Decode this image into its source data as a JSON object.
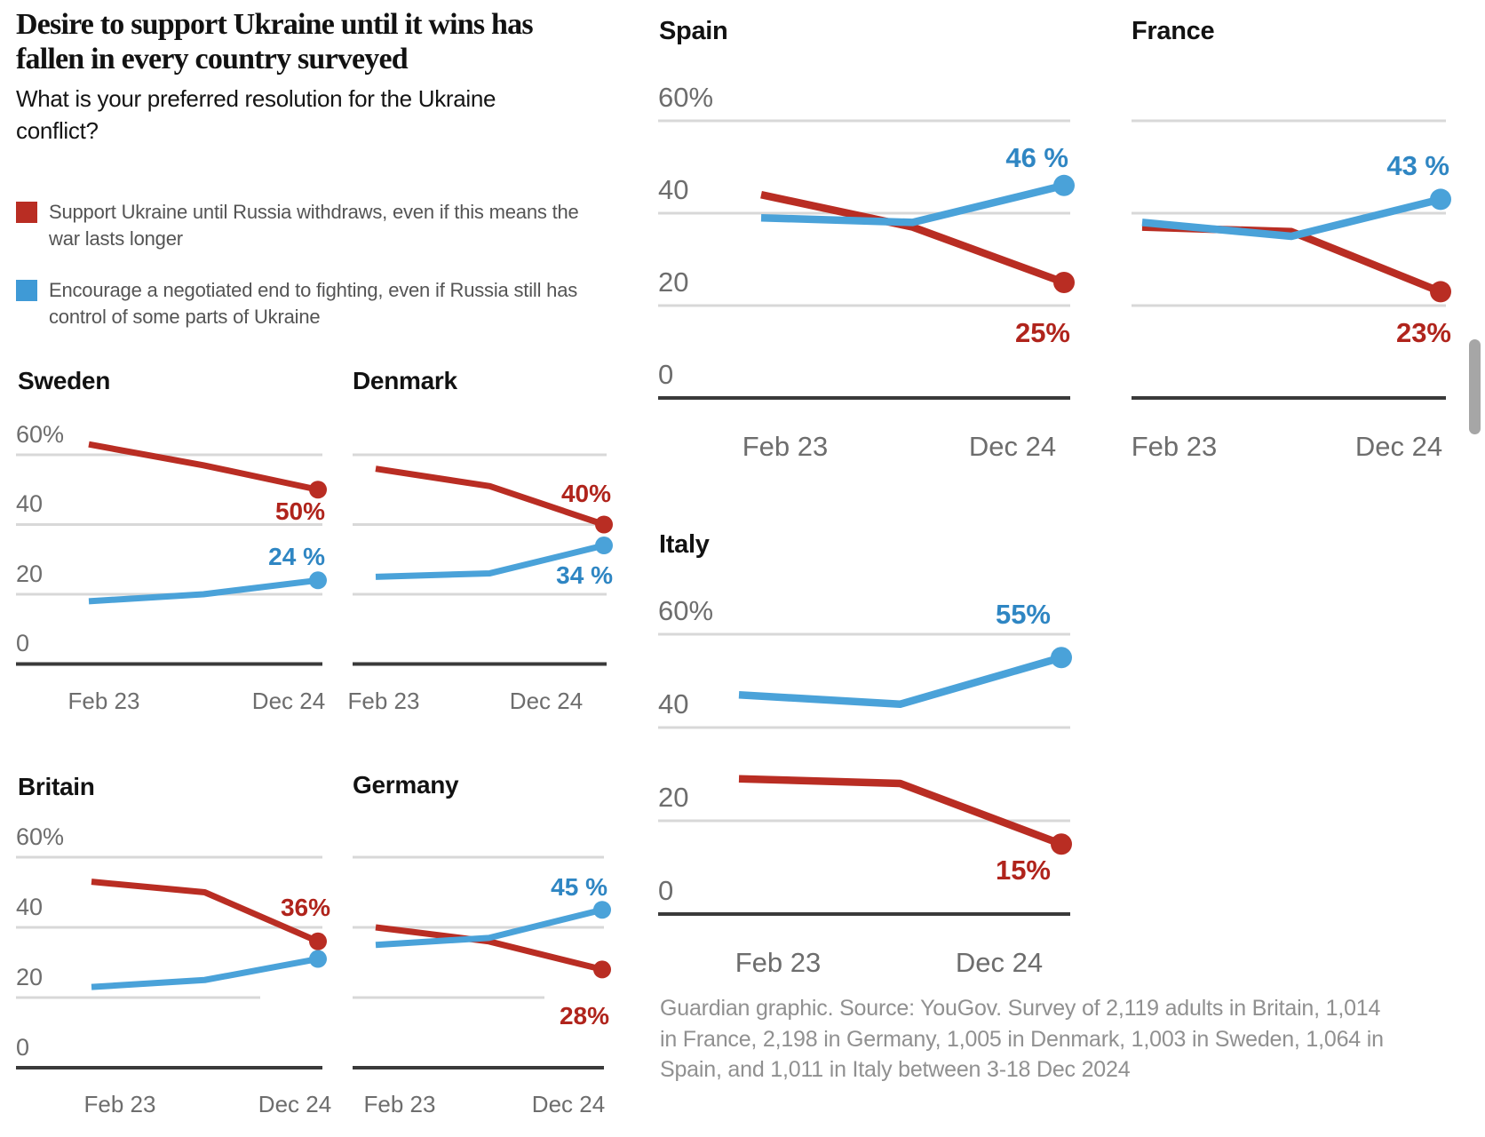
{
  "header": {
    "title": "Desire to support Ukraine until it wins has fallen in every country surveyed",
    "subtitle": "What is your preferred resolution for the Ukraine conflict?"
  },
  "legend": {
    "items": [
      {
        "key": "red",
        "color": "#b92d23",
        "label": "Support Ukraine until Russia withdraws, even if this means the war lasts longer"
      },
      {
        "key": "blue",
        "color": "#3f9ad6",
        "label": "Encourage a negotiated end to fighting, even if Russia still has control of some parts of Ukraine"
      }
    ]
  },
  "colors": {
    "red_line": "#b92d23",
    "red_label": "#b0241c",
    "blue_line": "#4aa2d9",
    "blue_label": "#2f86c3",
    "grid_line": "#d8d8d8",
    "axis_line": "#3a3a3a",
    "tick_text": "#6d6d6d",
    "heading_text": "#121212",
    "source_text": "#909090",
    "scrollbar": "#a6a6a6"
  },
  "chart_data": [
    {
      "type": "line",
      "title": "Sweden",
      "y_unit": "%",
      "ylim": [
        0,
        65
      ],
      "grid": true,
      "x_tick_labels": [
        "Feb 23",
        "Dec 24"
      ],
      "y_tick_labels": [
        "60%",
        "40",
        "20",
        "0"
      ],
      "series": [
        {
          "key": "red",
          "name": "Support Ukraine until Russia withdraws",
          "values": [
            63,
            57,
            50
          ],
          "end_label": "50%",
          "end_label_position": "below"
        },
        {
          "key": "blue",
          "name": "Encourage a negotiated end to fighting",
          "values": [
            18,
            20,
            24
          ],
          "end_label": "24 %",
          "end_label_position": "above"
        }
      ]
    },
    {
      "type": "line",
      "title": "Denmark",
      "y_unit": "%",
      "ylim": [
        0,
        65
      ],
      "grid": true,
      "x_tick_labels": [
        "Feb 23",
        "Dec 24"
      ],
      "y_tick_labels": [],
      "series": [
        {
          "key": "red",
          "name": "Support Ukraine until Russia withdraws",
          "values": [
            56,
            51,
            40
          ],
          "end_label": "40%",
          "end_label_position": "above"
        },
        {
          "key": "blue",
          "name": "Encourage a negotiated end to fighting",
          "values": [
            25,
            26,
            34
          ],
          "end_label": "34 %",
          "end_label_position": "below"
        }
      ]
    },
    {
      "type": "line",
      "title": "Britain",
      "y_unit": "%",
      "ylim": [
        0,
        65
      ],
      "grid": true,
      "x_tick_labels": [
        "Feb 23",
        "Dec 24"
      ],
      "y_tick_labels": [
        "60%",
        "40",
        "20",
        "0"
      ],
      "series": [
        {
          "key": "red",
          "name": "Support Ukraine until Russia withdraws",
          "values": [
            53,
            50,
            36
          ],
          "end_label": "36%",
          "end_label_position": "above"
        },
        {
          "key": "blue",
          "name": "Encourage a negotiated end to fighting",
          "values": [
            23,
            25,
            31
          ],
          "end_label": "",
          "end_label_position": ""
        }
      ]
    },
    {
      "type": "line",
      "title": "Germany",
      "y_unit": "%",
      "ylim": [
        0,
        65
      ],
      "grid": true,
      "x_tick_labels": [
        "Feb 23",
        "Dec 24"
      ],
      "y_tick_labels": [],
      "series": [
        {
          "key": "red",
          "name": "Support Ukraine until Russia withdraws",
          "values": [
            40,
            36,
            28
          ],
          "end_label": "28%",
          "end_label_position": "below"
        },
        {
          "key": "blue",
          "name": "Encourage a negotiated end to fighting",
          "values": [
            35,
            37,
            45
          ],
          "end_label": "45 %",
          "end_label_position": "above"
        }
      ]
    },
    {
      "type": "line",
      "title": "Spain",
      "y_unit": "%",
      "ylim": [
        0,
        65
      ],
      "grid": true,
      "x_tick_labels": [
        "Feb 23",
        "Dec 24"
      ],
      "y_tick_labels": [
        "60%",
        "40",
        "20",
        "0"
      ],
      "series": [
        {
          "key": "red",
          "name": "Support Ukraine until Russia withdraws",
          "values": [
            44,
            37,
            25
          ],
          "end_label": "25%",
          "end_label_position": "below"
        },
        {
          "key": "blue",
          "name": "Encourage a negotiated end to fighting",
          "values": [
            39,
            38,
            46
          ],
          "end_label": "46 %",
          "end_label_position": "above"
        }
      ]
    },
    {
      "type": "line",
      "title": "France",
      "y_unit": "%",
      "ylim": [
        0,
        65
      ],
      "grid": true,
      "x_tick_labels": [
        "Feb 23",
        "Dec 24"
      ],
      "y_tick_labels": [],
      "series": [
        {
          "key": "red",
          "name": "Support Ukraine until Russia withdraws",
          "values": [
            37,
            36,
            23
          ],
          "end_label": "23%",
          "end_label_position": "below"
        },
        {
          "key": "blue",
          "name": "Encourage a negotiated end to fighting",
          "values": [
            38,
            35,
            43
          ],
          "end_label": "43 %",
          "end_label_position": "above"
        }
      ]
    },
    {
      "type": "line",
      "title": "Italy",
      "y_unit": "%",
      "ylim": [
        0,
        65
      ],
      "grid": true,
      "x_tick_labels": [
        "Feb 23",
        "Dec 24"
      ],
      "y_tick_labels": [
        "60%",
        "40",
        "20",
        "0"
      ],
      "series": [
        {
          "key": "red",
          "name": "Support Ukraine until Russia withdraws",
          "values": [
            29,
            28,
            15
          ],
          "end_label": "15%",
          "end_label_position": "below"
        },
        {
          "key": "blue",
          "name": "Encourage a negotiated end to fighting",
          "values": [
            47,
            45,
            55
          ],
          "end_label": "55%",
          "end_label_position": "above"
        }
      ]
    }
  ],
  "source": "Guardian graphic. Source: YouGov. Survey of 2,119 adults in Britain, 1,014 in France, 2,198 in Germany, 1,005 in Denmark, 1,003 in Sweden, 1,064 in Spain, and 1,011 in Italy between 3-18 Dec 2024"
}
